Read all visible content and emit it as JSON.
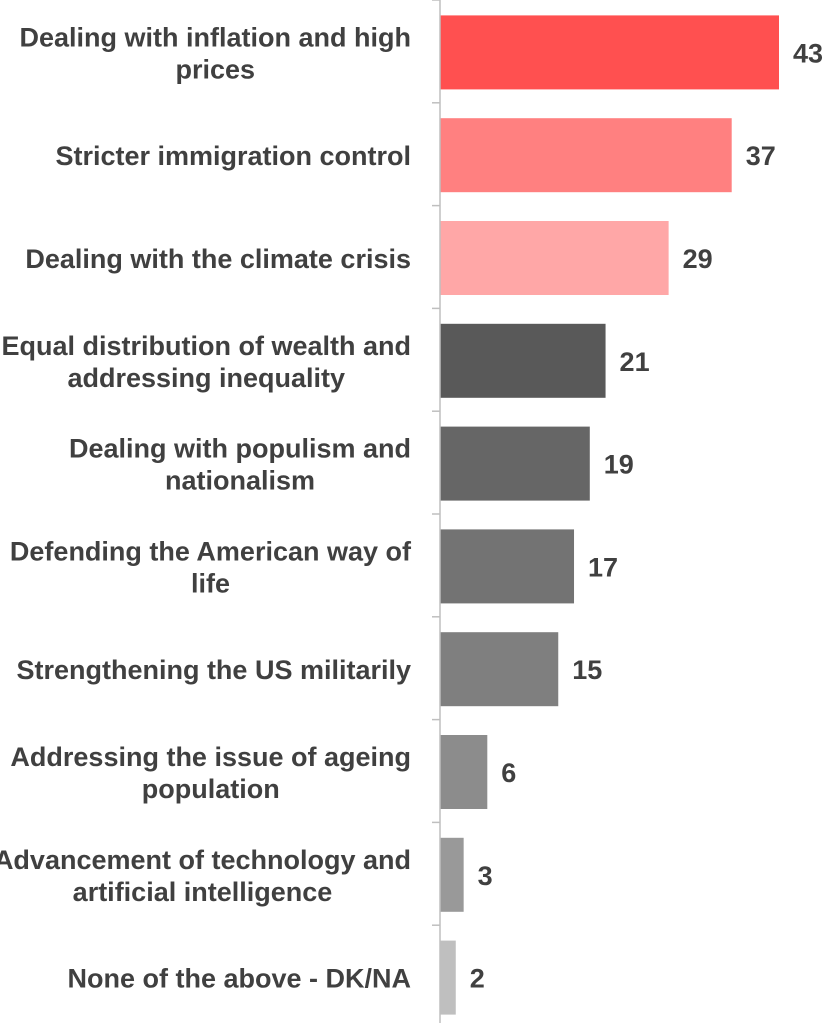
{
  "chart_data": {
    "type": "bar",
    "orientation": "horizontal",
    "categories": [
      [
        "Dealing with inflation and high",
        "prices"
      ],
      [
        "Stricter immigration control"
      ],
      [
        "Dealing with the climate crisis"
      ],
      [
        "Equal distribution of wealth and",
        "addressing inequality"
      ],
      [
        "Dealing with populism and",
        "nationalism"
      ],
      [
        "Defending the American way of",
        "life"
      ],
      [
        "Strengthening the US militarily"
      ],
      [
        "Addressing the issue of ageing",
        "population"
      ],
      [
        "Advancement of technology and",
        "artificial intelligence"
      ],
      [
        "None of the above - DK/NA"
      ]
    ],
    "values": [
      43,
      37,
      29,
      21,
      19,
      17,
      15,
      6,
      3,
      2
    ],
    "colors": [
      "#ff5050",
      "#ff8080",
      "#ffa7a7",
      "#595959",
      "#666666",
      "#737373",
      "#7f7f7f",
      "#8c8c8c",
      "#999999",
      "#bfbfbf"
    ],
    "axis_color": "#bfbfbf",
    "xlim": [
      0,
      43
    ],
    "title": "",
    "xlabel": "",
    "ylabel": "",
    "grid": false,
    "legend": "none",
    "data_labels": true
  }
}
